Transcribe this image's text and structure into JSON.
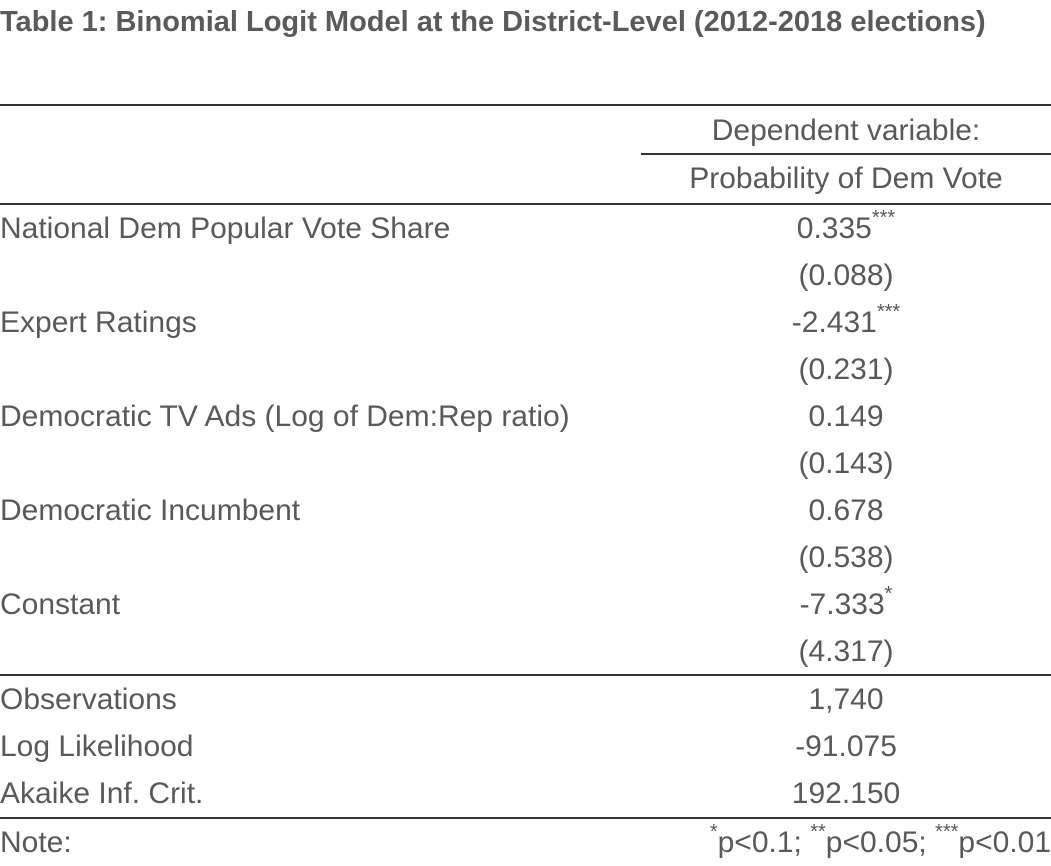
{
  "table": {
    "title": "Table 1: Binomial Logit Model at the District-Level (2012-2018 elections)",
    "header": {
      "dependent_label": "Dependent variable:",
      "dependent_name": "Probability of Dem Vote"
    },
    "rows": [
      {
        "label": "National Dem Popular Vote Share",
        "coef": "0.335",
        "stars": "***",
        "se": "(0.088)"
      },
      {
        "label": "Expert Ratings",
        "coef": "-2.431",
        "stars": "***",
        "se": "(0.231)"
      },
      {
        "label": "Democratic TV Ads (Log of Dem:Rep ratio)",
        "coef": "0.149",
        "stars": "",
        "se": "(0.143)"
      },
      {
        "label": "Democratic Incumbent",
        "coef": "0.678",
        "stars": "",
        "se": "(0.538)"
      },
      {
        "label": "Constant",
        "coef": "-7.333",
        "stars": "*",
        "se": "(4.317)"
      }
    ],
    "stats": [
      {
        "label": "Observations",
        "value": "1,740"
      },
      {
        "label": "Log Likelihood",
        "value": "-91.075"
      },
      {
        "label": "Akaike Inf. Crit.",
        "value": "192.150"
      }
    ],
    "note": {
      "label": "Note:",
      "s1": "*",
      "t1": "p<0.1; ",
      "s2": "**",
      "t2": "p<0.05; ",
      "s3": "***",
      "t3": "p<0.01"
    }
  }
}
